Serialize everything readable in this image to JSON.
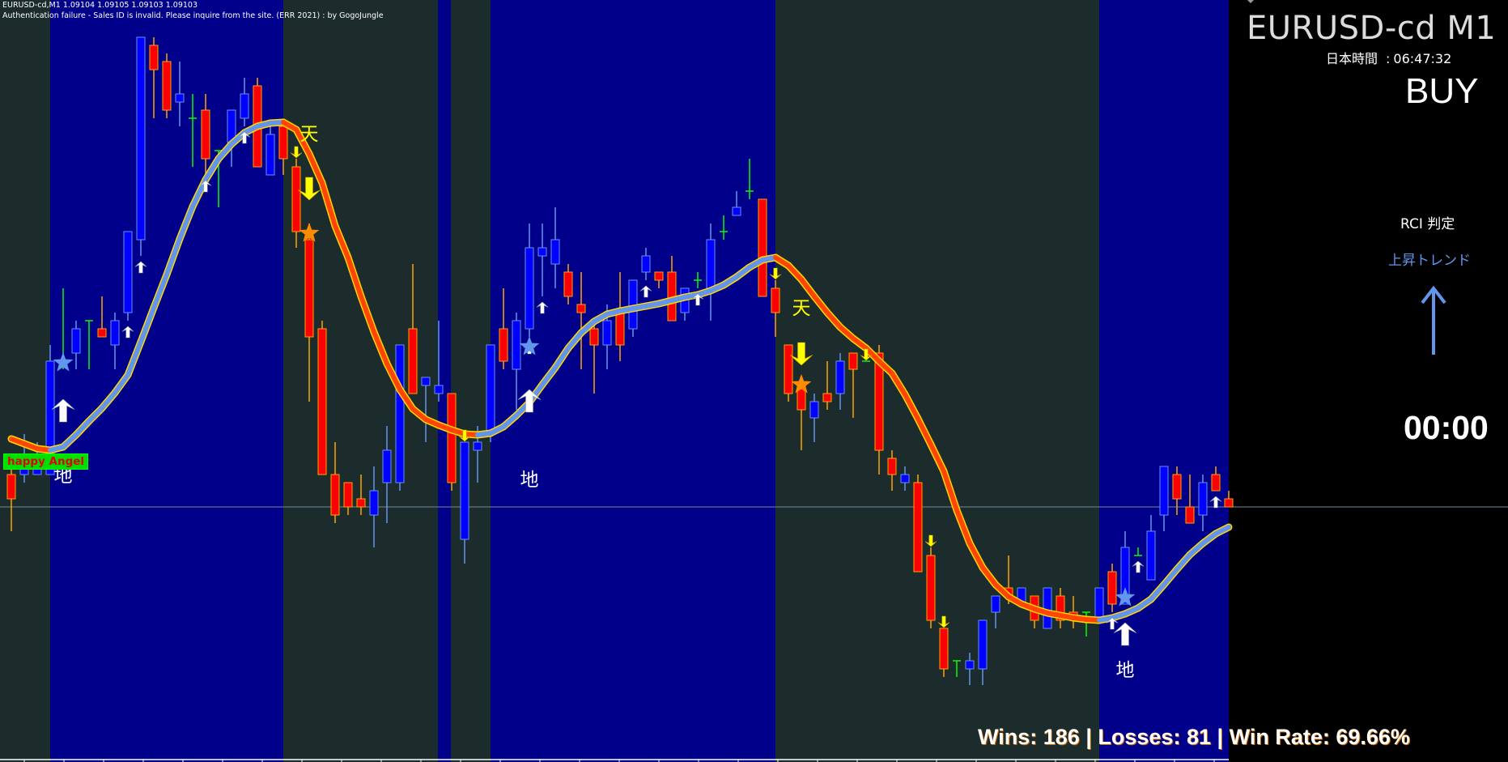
{
  "header": {
    "line1": "EURUSD-cd,M1  1.09104 1.09105 1.09103 1.09103",
    "line2": "Authentication failure - Sales ID is invalid. Please inquire from the site. (ERR 2021) : by GogoJungle"
  },
  "panel": {
    "symbol": "EURUSD-cd M1",
    "time_label": "日本時間",
    "time_sep": ":",
    "time_value": "06:47:32",
    "signal": "BUY",
    "rci_label": "RCI 判定",
    "rci_trend": "上昇トレンド",
    "rci_arrow": "arrow-up-icon",
    "countdown": "00:00"
  },
  "stats": {
    "wins_label": "Wins:",
    "wins": "186",
    "losses_label": "| Losses:",
    "losses": "81",
    "rate_label": "| Win Rate:",
    "rate": "69.66%"
  },
  "indicator_badge": "happy Angel",
  "colors": {
    "background": "#1c2b2b",
    "session_background": "#00008b",
    "panel_background": "#000000",
    "bull_body": "#0000ff",
    "bull_outline": "#6495ed",
    "bear_body": "#ff0000",
    "bear_outline": "#ffa500",
    "doji": "#00ff00",
    "ma_up": "#6495ed",
    "ma_down": "#ff4500",
    "ma_edge": "#ffd700",
    "price_line": "#778899"
  },
  "chart_data": {
    "type": "candlestick",
    "symbol": "EURUSD-cd",
    "timeframe": "M1",
    "current_price": 1.09103,
    "candles": [
      [
        1.09107,
        1.09108,
        1.091,
        1.09104
      ],
      [
        1.09107,
        1.09112,
        1.09106,
        1.09109
      ],
      [
        1.09107,
        1.09111,
        1.09107,
        1.09109
      ],
      [
        1.09107,
        1.09123,
        1.09107,
        1.09121
      ],
      [
        1.09121,
        1.0913,
        1.0912,
        1.09121
      ],
      [
        1.09122,
        1.09126,
        1.0912,
        1.09125
      ],
      [
        1.09126,
        1.09126,
        1.0912,
        1.09126
      ],
      [
        1.09125,
        1.09129,
        1.09124,
        1.09124
      ],
      [
        1.09123,
        1.09127,
        1.0912,
        1.09126
      ],
      [
        1.09127,
        1.09137,
        1.09126,
        1.09137
      ],
      [
        1.09136,
        1.09161,
        1.09134,
        1.09161
      ],
      [
        1.0916,
        1.09161,
        1.09151,
        1.09157
      ],
      [
        1.09158,
        1.09159,
        1.09151,
        1.09152
      ],
      [
        1.09153,
        1.09158,
        1.0915,
        1.09154
      ],
      [
        1.09151,
        1.09154,
        1.09145,
        1.09151
      ],
      [
        1.09152,
        1.09154,
        1.09144,
        1.09146
      ],
      [
        1.09147,
        1.09147,
        1.0914,
        1.09147
      ],
      [
        1.09148,
        1.09152,
        1.09145,
        1.09152
      ],
      [
        1.09151,
        1.09156,
        1.0915,
        1.09154
      ],
      [
        1.09155,
        1.09156,
        1.09145,
        1.09145
      ],
      [
        1.09144,
        1.0915,
        1.09144,
        1.09149
      ],
      [
        1.0915,
        1.0915,
        1.09144,
        1.09146
      ],
      [
        1.09145,
        1.09146,
        1.09135,
        1.09137
      ],
      [
        1.09136,
        1.09138,
        1.09116,
        1.09124
      ],
      [
        1.09125,
        1.09126,
        1.09107,
        1.09107
      ],
      [
        1.09107,
        1.09111,
        1.09101,
        1.09102
      ],
      [
        1.09106,
        1.09106,
        1.09102,
        1.09103
      ],
      [
        1.09104,
        1.09107,
        1.09102,
        1.09103
      ],
      [
        1.09102,
        1.09108,
        1.09098,
        1.09105
      ],
      [
        1.09106,
        1.09113,
        1.09101,
        1.0911
      ],
      [
        1.09106,
        1.09123,
        1.09105,
        1.09123
      ],
      [
        1.09125,
        1.09133,
        1.09117,
        1.09117
      ],
      [
        1.09118,
        1.09119,
        1.09111,
        1.09119
      ],
      [
        1.09117,
        1.09126,
        1.09116,
        1.09118
      ],
      [
        1.09117,
        1.09117,
        1.09105,
        1.09106
      ],
      [
        1.09099,
        1.09111,
        1.09096,
        1.09111
      ],
      [
        1.0911,
        1.09113,
        1.09106,
        1.09111
      ],
      [
        1.09112,
        1.09123,
        1.09111,
        1.09123
      ],
      [
        1.09125,
        1.0913,
        1.0912,
        1.09121
      ],
      [
        1.0912,
        1.09127,
        1.09115,
        1.09126
      ],
      [
        1.09125,
        1.09138,
        1.09124,
        1.09135
      ],
      [
        1.09134,
        1.09138,
        1.09129,
        1.09135
      ],
      [
        1.09133,
        1.0914,
        1.0913,
        1.09136
      ],
      [
        1.09132,
        1.09133,
        1.09128,
        1.09129
      ],
      [
        1.09128,
        1.09132,
        1.0912,
        1.09127
      ],
      [
        1.09125,
        1.09126,
        1.09117,
        1.09123
      ],
      [
        1.09123,
        1.09128,
        1.0912,
        1.09126
      ],
      [
        1.09127,
        1.09132,
        1.09121,
        1.09123
      ],
      [
        1.09125,
        1.09131,
        1.09124,
        1.09131
      ],
      [
        1.09132,
        1.09135,
        1.09131,
        1.09134
      ],
      [
        1.09132,
        1.09132,
        1.0913,
        1.09131
      ],
      [
        1.09132,
        1.09134,
        1.09126,
        1.09126
      ],
      [
        1.09127,
        1.0913,
        1.09126,
        1.0913
      ],
      [
        1.09131,
        1.09132,
        1.0913,
        1.09131
      ],
      [
        1.0913,
        1.09138,
        1.09126,
        1.09136
      ],
      [
        1.09137,
        1.09139,
        1.09136,
        1.09137
      ],
      [
        1.09139,
        1.09142,
        1.09139,
        1.0914
      ],
      [
        1.09142,
        1.09146,
        1.09141,
        1.09142
      ],
      [
        1.09141,
        1.09141,
        1.09129,
        1.09129
      ],
      [
        1.0913,
        1.09131,
        1.09124,
        1.09127
      ],
      [
        1.09123,
        1.09123,
        1.09116,
        1.09117
      ],
      [
        1.09118,
        1.09118,
        1.0911,
        1.09115
      ],
      [
        1.09114,
        1.09117,
        1.09111,
        1.09116
      ],
      [
        1.09117,
        1.09121,
        1.09115,
        1.09116
      ],
      [
        1.09117,
        1.09122,
        1.09115,
        1.09121
      ],
      [
        1.09122,
        1.09122,
        1.09114,
        1.0912
      ],
      [
        1.09121,
        1.09121,
        1.09121,
        1.09121
      ],
      [
        1.09122,
        1.09123,
        1.09107,
        1.0911
      ],
      [
        1.09109,
        1.0911,
        1.09105,
        1.09107
      ],
      [
        1.09106,
        1.09108,
        1.09105,
        1.09107
      ],
      [
        1.09106,
        1.09107,
        1.09095,
        1.09095
      ],
      [
        1.09097,
        1.09098,
        1.09088,
        1.09089
      ],
      [
        1.09088,
        1.09088,
        1.09082,
        1.09083
      ],
      [
        1.09084,
        1.09084,
        1.09082,
        1.09084
      ],
      [
        1.09083,
        1.09085,
        1.09081,
        1.09084
      ],
      [
        1.09083,
        1.09089,
        1.09081,
        1.09089
      ],
      [
        1.0909,
        1.09092,
        1.09088,
        1.09092
      ],
      [
        1.09093,
        1.09097,
        1.09091,
        1.09092
      ],
      [
        1.09091,
        1.09093,
        1.09091,
        1.09093
      ],
      [
        1.09092,
        1.09092,
        1.09088,
        1.09089
      ],
      [
        1.09088,
        1.09093,
        1.09088,
        1.09093
      ],
      [
        1.09092,
        1.09093,
        1.09088,
        1.09089
      ],
      [
        1.0909,
        1.09092,
        1.09088,
        1.09089
      ],
      [
        1.0909,
        1.0909,
        1.09087,
        1.0909
      ],
      [
        1.09089,
        1.09093,
        1.09089,
        1.09093
      ],
      [
        1.09095,
        1.09096,
        1.0909,
        1.09091
      ],
      [
        1.09091,
        1.091,
        1.09091,
        1.09098
      ],
      [
        1.09097,
        1.09098,
        1.09097,
        1.09097
      ],
      [
        1.09094,
        1.09102,
        1.09094,
        1.091
      ],
      [
        1.09102,
        1.09108,
        1.091,
        1.09108
      ],
      [
        1.09107,
        1.09108,
        1.09102,
        1.09104
      ],
      [
        1.09103,
        1.09107,
        1.09101,
        1.09101
      ],
      [
        1.09102,
        1.09107,
        1.091,
        1.09106
      ],
      [
        1.09107,
        1.09108,
        1.09105,
        1.09105
      ],
      [
        1.09104,
        1.09105,
        1.09103,
        1.09103
      ]
    ],
    "moving_average": [
      1.091114,
      1.091108,
      1.091102,
      1.0911,
      1.091104,
      1.091119,
      1.091136,
      1.091152,
      1.091171,
      1.091193,
      1.091234,
      1.091276,
      1.091317,
      1.091361,
      1.091401,
      1.091434,
      1.09146,
      1.091478,
      1.091492,
      1.0915,
      1.091504,
      1.091505,
      1.091496,
      1.091466,
      1.09143,
      1.091377,
      1.091338,
      1.09129,
      1.091246,
      1.091207,
      1.091175,
      1.091151,
      1.091138,
      1.091131,
      1.091125,
      1.09112,
      1.091119,
      1.091121,
      1.091129,
      1.091143,
      1.091159,
      1.091181,
      1.091202,
      1.091226,
      1.091245,
      1.091259,
      1.091268,
      1.091272,
      1.091275,
      1.091278,
      1.091281,
      1.091285,
      1.091289,
      1.091292,
      1.091297,
      1.091304,
      1.091314,
      1.091326,
      1.091335,
      1.091338,
      1.091328,
      1.091311,
      1.09129,
      1.09127,
      1.091252,
      1.091238,
      1.091226,
      1.09121,
      1.091195,
      1.091169,
      1.091139,
      1.091107,
      1.091074,
      1.091026,
      1.090985,
      1.090955,
      1.090934,
      1.090919,
      1.09091,
      1.090904,
      1.090899,
      1.090896,
      1.090893,
      1.090891,
      1.09089,
      1.090893,
      1.090898,
      1.090905,
      1.090916,
      1.090934,
      1.090953,
      1.090971,
      1.090985,
      1.090997,
      1.091005
    ],
    "small_up_arrows": [
      9,
      10,
      15,
      18,
      40,
      41,
      49,
      53,
      85,
      87,
      93
    ],
    "small_down_arrows": [
      22,
      35,
      59,
      66,
      71,
      72
    ],
    "buy_signals": [
      {
        "bar": 4,
        "label": "地"
      },
      {
        "bar": 40,
        "label": "地"
      },
      {
        "bar": 86,
        "label": "地"
      }
    ],
    "sell_signals": [
      {
        "bar": 23,
        "label": "天"
      },
      {
        "bar": 61,
        "label": "天"
      }
    ]
  }
}
